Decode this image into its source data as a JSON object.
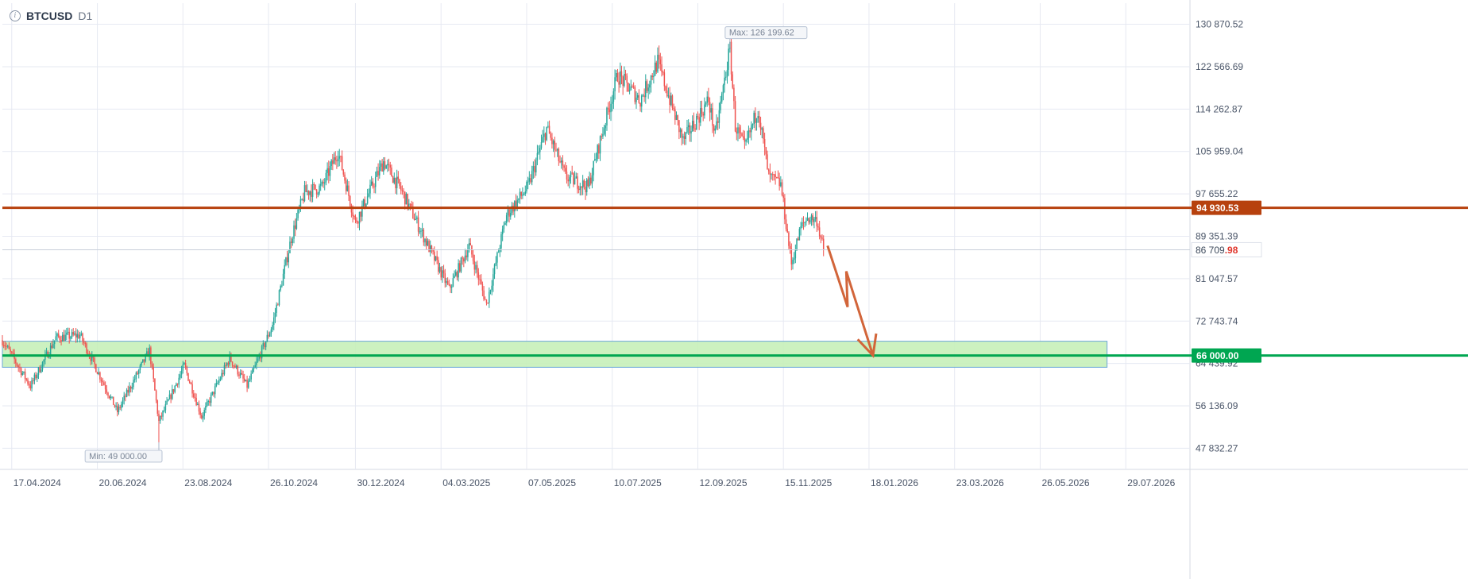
{
  "header": {
    "symbol": "BTCUSD",
    "timeframe": "D1",
    "info_icon": "info-icon"
  },
  "colors": {
    "up": "#26a69a",
    "down": "#ef5350",
    "grid": "#e6e9f2",
    "resistance": "#b7410e",
    "support": "#00a651",
    "zone_fill": "#c6f0b9",
    "zone_stroke": "#6aa6d8",
    "arrow": "#d2653a"
  },
  "chart_data": {
    "type": "candlestick",
    "symbol": "BTCUSD",
    "timeframe": "D1",
    "ylim": [
      43700,
      135000
    ],
    "y_ticks": [
      "130 870.52",
      "122 566.69",
      "114 262.87",
      "105 959.04",
      "97 655.22",
      "89 351.39",
      "81 047.57",
      "72 743.74",
      "64 439.92",
      "56 136.09",
      "47 832.27"
    ],
    "y_tick_values": [
      130870.52,
      122566.69,
      114262.87,
      105959.04,
      97655.22,
      89351.39,
      81047.57,
      72743.74,
      64439.92,
      56136.09,
      47832.27
    ],
    "x_ticks": [
      "17.04.2024",
      "20.06.2024",
      "23.08.2024",
      "26.10.2024",
      "30.12.2024",
      "04.03.2025",
      "07.05.2025",
      "10.07.2025",
      "12.09.2025",
      "15.11.2025",
      "18.01.2026",
      "23.03.2026",
      "26.05.2026",
      "29.07.2026"
    ],
    "price_path": [
      [
        "2024-04-10",
        69000
      ],
      [
        "2024-05-01",
        60000
      ],
      [
        "2024-05-20",
        69500
      ],
      [
        "2024-06-07",
        70000
      ],
      [
        "2024-07-05",
        55000
      ],
      [
        "2024-07-29",
        67000
      ],
      [
        "2024-08-05",
        53000
      ],
      [
        "2024-08-24",
        64000
      ],
      [
        "2024-09-06",
        54000
      ],
      [
        "2024-09-27",
        65500
      ],
      [
        "2024-10-10",
        60000
      ],
      [
        "2024-10-29",
        72000
      ],
      [
        "2024-11-12",
        89000
      ],
      [
        "2024-11-22",
        98000
      ],
      [
        "2024-12-05",
        99000
      ],
      [
        "2024-12-17",
        106000
      ],
      [
        "2024-12-30",
        92000
      ],
      [
        "2025-01-20",
        104000
      ],
      [
        "2025-02-03",
        98000
      ],
      [
        "2025-02-25",
        86000
      ],
      [
        "2025-03-10",
        79000
      ],
      [
        "2025-03-25",
        87500
      ],
      [
        "2025-04-07",
        76000
      ],
      [
        "2025-04-22",
        93500
      ],
      [
        "2025-05-08",
        99000
      ],
      [
        "2025-05-22",
        110500
      ],
      [
        "2025-06-05",
        101000
      ],
      [
        "2025-06-22",
        99000
      ],
      [
        "2025-07-14",
        121000
      ],
      [
        "2025-07-31",
        116000
      ],
      [
        "2025-08-13",
        123500
      ],
      [
        "2025-09-01",
        108000
      ],
      [
        "2025-09-20",
        116000
      ],
      [
        "2025-09-25",
        109000
      ],
      [
        "2025-10-06",
        126199.62
      ],
      [
        "2025-10-10",
        111000
      ],
      [
        "2025-10-17",
        106500
      ],
      [
        "2025-10-27",
        114500
      ],
      [
        "2025-11-04",
        101000
      ],
      [
        "2025-11-13",
        99500
      ],
      [
        "2025-11-21",
        84000
      ],
      [
        "2025-11-28",
        91000
      ],
      [
        "2025-12-03",
        93000
      ],
      [
        "2025-12-10",
        92500
      ],
      [
        "2025-12-15",
        86709.98
      ]
    ],
    "current_price": 86709.98,
    "current_price_label_main": "86 709",
    "current_price_label_frac": ".98",
    "max_label": "Max: 126 199.62",
    "max_point": [
      "2025-10-06",
      126199.62
    ],
    "min_label": "Min: 49 000.00",
    "min_point": [
      "2024-08-05",
      49000
    ],
    "resistance": {
      "value": 94930.53,
      "label": "94 930.53"
    },
    "support": {
      "value": 66000,
      "label": "66 000.00"
    },
    "zone": {
      "from": 63700,
      "to": 68800,
      "start": "2024-04-10",
      "end": "2026-07-15"
    },
    "forecast_arrow": [
      [
        "2025-12-18",
        87500
      ],
      [
        "2026-01-02",
        75500
      ],
      [
        "2026-01-01",
        82500
      ],
      [
        "2026-01-21",
        66000
      ]
    ],
    "x_range": [
      "2024-04-10",
      "2026-09-15"
    ],
    "grid": true
  }
}
